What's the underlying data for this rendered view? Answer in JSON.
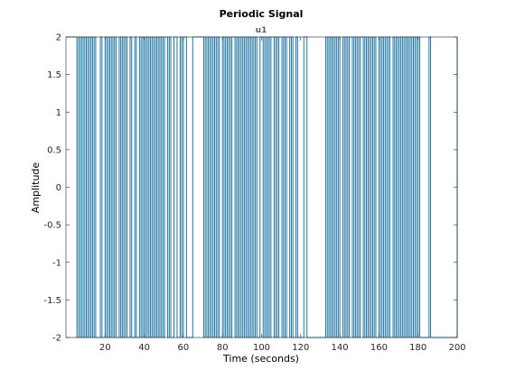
{
  "chart_data": {
    "type": "line",
    "title": "Periodic Signal",
    "subtitle": "u1",
    "xlabel": "Time (seconds)",
    "ylabel": "Amplitude",
    "xlim": [
      0,
      200
    ],
    "ylim": [
      -2,
      2
    ],
    "xticks": [
      20,
      40,
      60,
      80,
      100,
      120,
      140,
      160,
      180,
      200
    ],
    "yticks": [
      2,
      1.5,
      1,
      0.5,
      0,
      -0.5,
      -1,
      -1.5,
      -2
    ],
    "ytick_labels": [
      "2",
      "1.5",
      "1",
      "0.5",
      "0",
      "-0.5",
      "-1",
      "-1.5",
      "-2"
    ],
    "grid": false,
    "line_color": "#1f77a4",
    "series": [
      {
        "step": true,
        "x": [
          0,
          5.6,
          6.4,
          7.2,
          8.0,
          8.8,
          9.6,
          10.4,
          11.2,
          12.0,
          12.8,
          13.6,
          14.4,
          15.2,
          17.6,
          18.4,
          20.0,
          20.8,
          21.6,
          22.4,
          23.2,
          24.0,
          24.8,
          25.6,
          27.2,
          28.0,
          28.8,
          29.6,
          30.4,
          31.2,
          32.8,
          33.6,
          35.2,
          36.0,
          37.6,
          38.4,
          39.2,
          40.0,
          40.8,
          41.6,
          42.4,
          43.2,
          44.0,
          44.8,
          45.6,
          46.4,
          47.2,
          48.0,
          48.8,
          49.6,
          50.4,
          52.0,
          52.8,
          53.6,
          55.2,
          56.8,
          58.4,
          59.2,
          60.0,
          61.6,
          64.8,
          70.4,
          71.2,
          72.0,
          72.8,
          73.6,
          74.4,
          75.2,
          76.0,
          76.8,
          77.6,
          78.4,
          80.0,
          80.8,
          81.6,
          82.4,
          83.2,
          84.0,
          84.8,
          86.4,
          87.2,
          88.0,
          88.8,
          89.6,
          90.4,
          91.2,
          92.0,
          92.8,
          93.6,
          94.4,
          95.2,
          96.0,
          96.8,
          97.6,
          99.2,
          100.8,
          101.6,
          102.4,
          103.2,
          104.0,
          104.8,
          106.4,
          107.2,
          108.0,
          108.8,
          110.4,
          111.2,
          112.0,
          112.8,
          114.4,
          115.2,
          116.0,
          117.6,
          118.4,
          121.6,
          123.2,
          132.8,
          133.6,
          134.4,
          135.2,
          136.0,
          136.8,
          137.6,
          138.4,
          139.2,
          140.0,
          141.6,
          142.4,
          143.2,
          144.0,
          144.8,
          146.4,
          147.2,
          148.0,
          148.8,
          149.6,
          150.4,
          152.0,
          152.8,
          153.6,
          154.4,
          155.2,
          156.0,
          156.8,
          157.6,
          158.4,
          160.0,
          160.8,
          161.6,
          162.4,
          163.2,
          164.0,
          164.8,
          165.6,
          167.2,
          168.0,
          168.8,
          169.6,
          170.4,
          171.2,
          172.0,
          172.8,
          173.6,
          174.4,
          175.2,
          176.0,
          176.8,
          177.6,
          178.4,
          179.2,
          180.0,
          180.8,
          185.6,
          186.4,
          200
        ],
        "y": [
          2,
          -2,
          2,
          -2,
          2,
          -2,
          2,
          -2,
          2,
          -2,
          2,
          -2,
          2,
          -2,
          2,
          -2,
          2,
          -2,
          2,
          -2,
          2,
          -2,
          2,
          -2,
          2,
          -2,
          2,
          -2,
          2,
          -2,
          2,
          -2,
          2,
          -2,
          2,
          -2,
          2,
          -2,
          2,
          -2,
          2,
          -2,
          2,
          -2,
          2,
          -2,
          2,
          -2,
          2,
          -2,
          2,
          -2,
          2,
          -2,
          2,
          -2,
          2,
          -2,
          2,
          -2,
          2,
          -2,
          2,
          -2,
          2,
          -2,
          2,
          -2,
          2,
          -2,
          2,
          -2,
          2,
          -2,
          2,
          -2,
          2,
          -2,
          2,
          -2,
          2,
          -2,
          2,
          -2,
          2,
          -2,
          2,
          -2,
          2,
          -2,
          2,
          -2,
          2,
          -2,
          2,
          -2,
          2,
          -2,
          2,
          -2,
          2,
          -2,
          2,
          -2,
          2,
          -2,
          2,
          -2,
          2,
          -2,
          2,
          -2,
          2,
          -2,
          2,
          -2,
          2,
          -2,
          2,
          -2,
          2,
          -2,
          2,
          -2,
          2,
          -2,
          2,
          -2,
          2,
          -2,
          2,
          -2,
          2,
          -2,
          2,
          -2,
          2,
          -2,
          2,
          -2,
          2,
          -2,
          2,
          -2,
          2,
          -2,
          2,
          -2,
          2,
          -2,
          2,
          -2,
          2,
          -2,
          2,
          -2,
          2,
          -2,
          2,
          -2,
          2,
          -2,
          2,
          -2,
          2,
          -2,
          2,
          -2,
          2,
          -2,
          2,
          -2,
          2,
          -2,
          2
        ]
      }
    ]
  }
}
